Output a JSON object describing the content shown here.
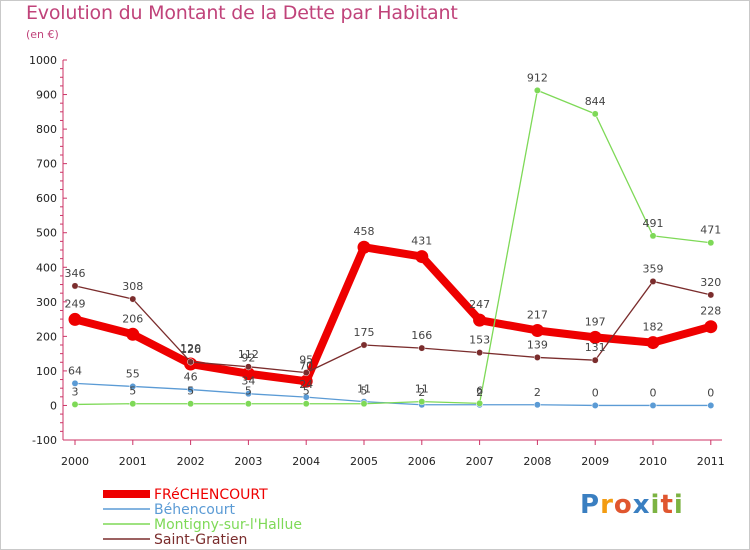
{
  "header": {
    "title": "Evolution du Montant de la Dette par Habitant",
    "unit": "(en €)"
  },
  "logo": {
    "text": "Proxiti",
    "colors": [
      "#3a7fc1",
      "#f39c12",
      "#e0562f",
      "#3a7fc1",
      "#7cb342",
      "#e0562f",
      "#7cb342"
    ]
  },
  "chart_data": {
    "type": "line",
    "title": "Evolution du Montant de la Dette par Habitant",
    "ylabel": "(en €)",
    "xlabel": "",
    "x": [
      "2000",
      "2001",
      "2002",
      "2003",
      "2004",
      "2005",
      "2006",
      "2007",
      "2008",
      "2009",
      "2010",
      "2011"
    ],
    "ylim": [
      -100,
      1000
    ],
    "yticks": [
      "-100",
      "0",
      "100",
      "200",
      "300",
      "400",
      "500",
      "600",
      "700",
      "800",
      "900",
      "1000"
    ],
    "grid": false,
    "legend": "bottom-left",
    "series": [
      {
        "name": "FRéCHENCOURT",
        "color": "#ee0000",
        "values": [
          249,
          206,
          120,
          92,
          70,
          458,
          431,
          247,
          217,
          197,
          182,
          228
        ],
        "labels": [
          "249",
          "206",
          "120",
          "92",
          "70",
          "458",
          "431",
          "247",
          "217",
          "197",
          "182",
          "228"
        ]
      },
      {
        "name": "Béhencourt",
        "color": "#5b9bd5",
        "values": [
          64,
          55,
          46,
          34,
          24,
          11,
          2,
          2,
          2,
          0,
          0,
          0
        ],
        "labels": [
          "64",
          "55",
          "46",
          "34",
          "24",
          "11",
          "2",
          "2",
          "2",
          "0",
          "0",
          "0"
        ]
      },
      {
        "name": "Montigny-sur-l'Hallue",
        "color": "#7ed957",
        "values": [
          3,
          5,
          5,
          5,
          5,
          5,
          11,
          6,
          912,
          844,
          491,
          471
        ],
        "labels": [
          "3",
          "5",
          "5",
          "5",
          "5",
          "5",
          "11",
          "6",
          "912",
          "844",
          "491",
          "471"
        ]
      },
      {
        "name": "Saint-Gratien",
        "color": "#7b2d2d",
        "values": [
          346,
          308,
          126,
          112,
          95,
          175,
          166,
          153,
          139,
          131,
          359,
          320
        ],
        "labels": [
          "346",
          "308",
          "126",
          "112",
          "95",
          "175",
          "166",
          "153",
          "139",
          "131",
          "359",
          "320"
        ]
      }
    ]
  }
}
